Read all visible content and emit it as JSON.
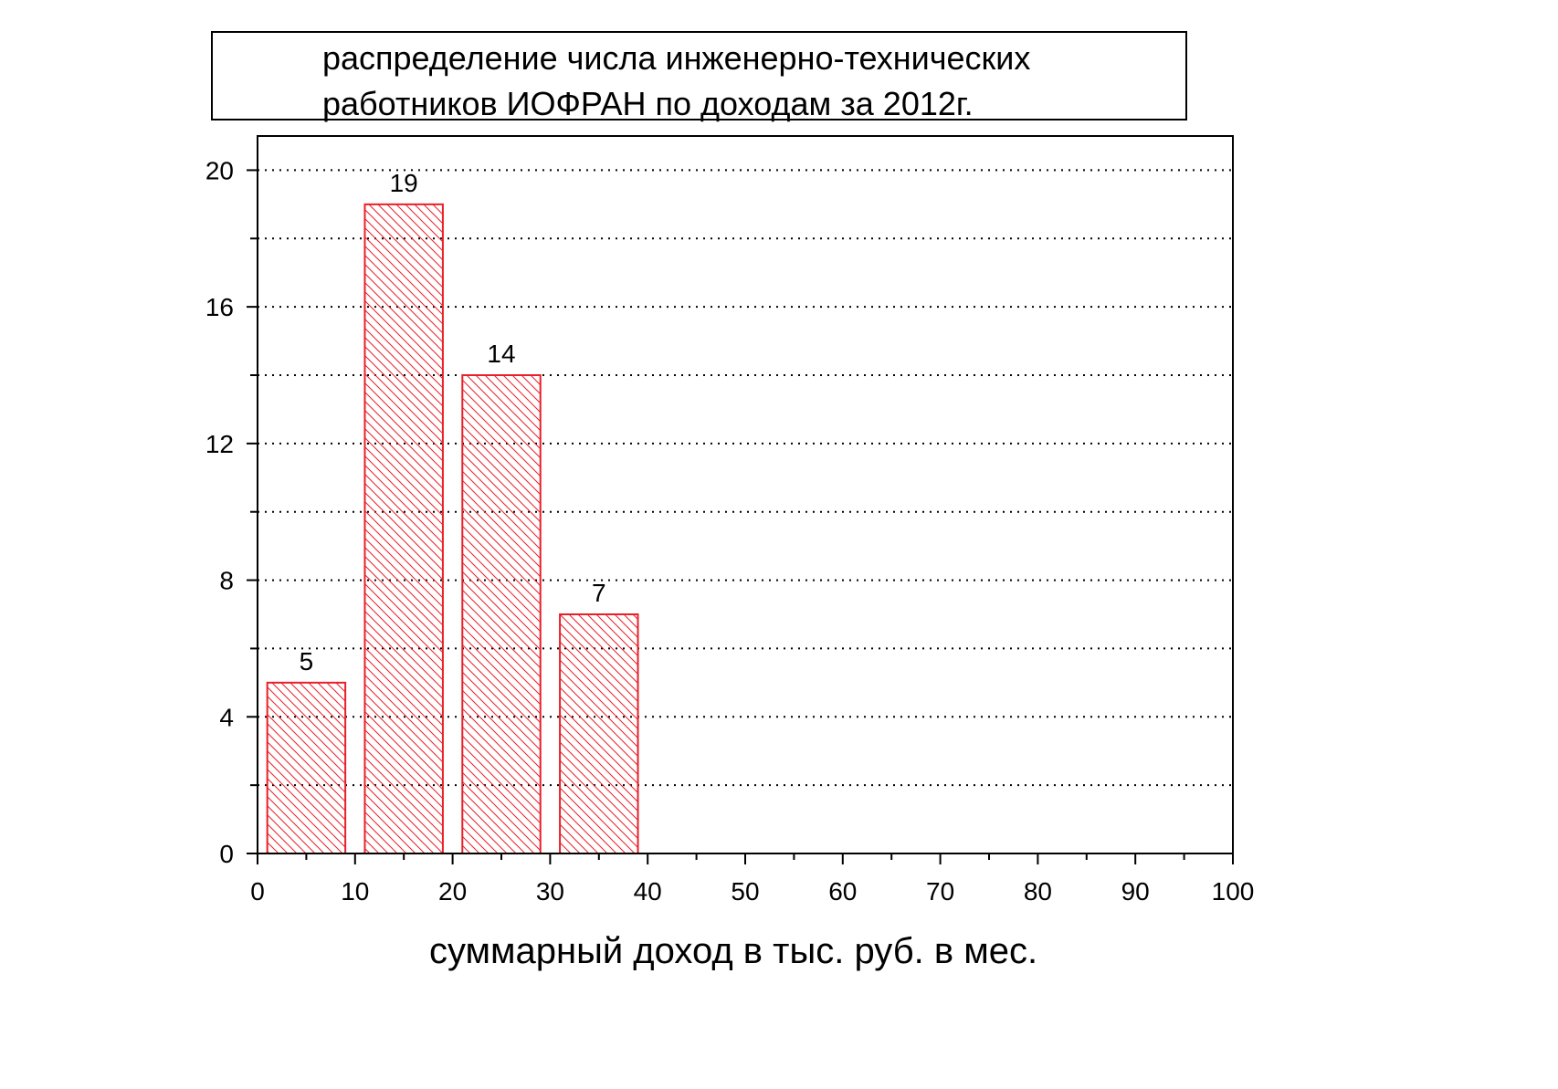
{
  "chart_data": {
    "type": "bar",
    "title_lines": [
      "распределение числа инженерно-технических",
      "работников ИОФРАН по доходам за 2012г."
    ],
    "xlabel": "суммарный доход в тыс. руб. в мес.",
    "ylabel": "",
    "xlim": [
      0,
      100
    ],
    "ylim": [
      0,
      21
    ],
    "x_ticks": [
      "0",
      "10",
      "20",
      "30",
      "40",
      "50",
      "60",
      "70",
      "80",
      "90",
      "100"
    ],
    "y_ticks": [
      "0",
      "4",
      "8",
      "12",
      "16",
      "20"
    ],
    "bins": [
      [
        1,
        9
      ],
      [
        11,
        19
      ],
      [
        21,
        29
      ],
      [
        31,
        39
      ]
    ],
    "values": [
      5,
      19,
      14,
      7
    ],
    "data_labels": [
      "5",
      "19",
      "14",
      "7"
    ],
    "grid": "horizontal dotted",
    "bar_color": "#e8202a",
    "bar_fill": "diagonal hatch"
  }
}
